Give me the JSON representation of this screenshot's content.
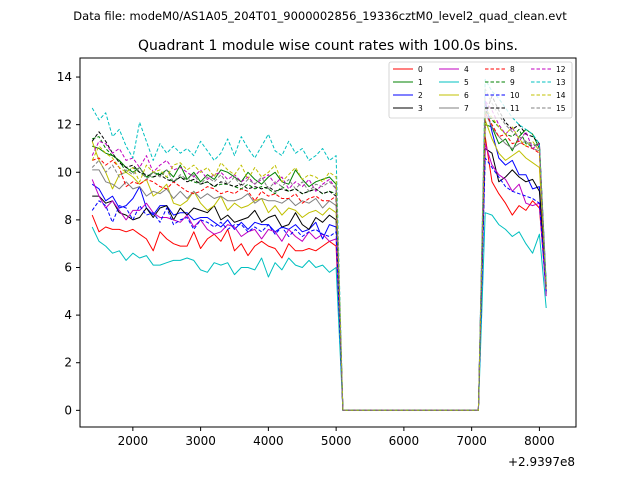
{
  "chart_data": {
    "type": "line",
    "suptitle": "Data file: modeM0/AS1A05_204T01_9000002856_19336cztM0_level2_quad_clean.evt",
    "title": "Quadrant 1 module wise count rates with 100.0s bins.",
    "xlabel": "",
    "ylabel": "",
    "x_offset_label": "+2.9397e8",
    "xlim": [
      1220,
      8540
    ],
    "ylim": [
      -0.7,
      14.8
    ],
    "xticks": [
      2000,
      3000,
      4000,
      5000,
      6000,
      7000,
      8000
    ],
    "yticks": [
      0,
      2,
      4,
      6,
      8,
      10,
      12,
      14
    ],
    "legend_position": "upper-right",
    "legend_columns": 4,
    "x": [
      1400,
      1500,
      1600,
      1700,
      1800,
      1900,
      2000,
      2100,
      2200,
      2300,
      2400,
      2500,
      2600,
      2700,
      2800,
      2900,
      3000,
      3100,
      3200,
      3300,
      3400,
      3500,
      3600,
      3700,
      3800,
      3900,
      4000,
      4100,
      4200,
      4300,
      4400,
      4500,
      4600,
      4700,
      4800,
      4900,
      5000,
      5100,
      5200,
      5300,
      5400,
      5500,
      5600,
      5700,
      5800,
      5900,
      6000,
      6100,
      6200,
      6300,
      6400,
      6500,
      6600,
      6700,
      6800,
      6900,
      7000,
      7100,
      7200,
      7300,
      7400,
      7500,
      7600,
      7700,
      7800,
      7900,
      8000,
      8100,
      8200
    ],
    "gap_start_index": 37,
    "gap_end_index": 57,
    "series": [
      {
        "name": "0",
        "color": "#ff0000",
        "style": "solid",
        "active": [
          8.2,
          7.5,
          7.7,
          7.6,
          7.6,
          7.5,
          7.6,
          7.4,
          7.2,
          6.7,
          7.5,
          7.2,
          7.0,
          6.9,
          6.9,
          7.5,
          6.8,
          7.2,
          7.4,
          7.1,
          7.6,
          6.7,
          7.0,
          6.5,
          6.9,
          7.1,
          6.9,
          6.8,
          6.4,
          7.0,
          6.7,
          6.7,
          6.8,
          6.7,
          6.9,
          7.1,
          6.9
        ],
        "post": [
          11.5,
          9.6,
          9.1,
          8.7,
          8.2,
          8.6,
          8.4,
          8.8,
          8.5,
          5.0
        ]
      },
      {
        "name": "1",
        "color": "#008000",
        "style": "solid",
        "active": [
          11.1,
          11.0,
          10.8,
          10.7,
          10.5,
          10.2,
          10.0,
          10.2,
          9.8,
          10.0,
          9.9,
          10.1,
          9.8,
          10.3,
          9.7,
          10.0,
          9.6,
          9.9,
          9.7,
          10.1,
          10.0,
          9.8,
          9.6,
          10.0,
          9.7,
          9.5,
          9.8,
          10.0,
          9.6,
          9.5,
          10.1,
          9.7,
          9.4,
          9.6,
          9.7,
          9.8,
          9.5
        ],
        "post": [
          12.0,
          11.9,
          11.2,
          11.4,
          10.9,
          11.5,
          11.8,
          11.6,
          11.0,
          4.9
        ]
      },
      {
        "name": "2",
        "color": "#0000ff",
        "style": "solid",
        "active": [
          9.5,
          9.3,
          8.8,
          9.0,
          8.5,
          8.6,
          8.9,
          9.4,
          8.5,
          8.2,
          8.6,
          8.6,
          8.2,
          8.3,
          8.3,
          8.0,
          8.1,
          8.1,
          7.9,
          7.7,
          8.0,
          7.6,
          7.9,
          7.6,
          7.9,
          7.8,
          7.8,
          7.5,
          7.7,
          7.6,
          7.8,
          7.5,
          7.6,
          7.9,
          7.2,
          7.8,
          7.7
        ],
        "post": [
          13.0,
          11.7,
          10.6,
          10.3,
          10.5,
          9.9,
          9.9,
          9.3,
          9.4,
          5.2
        ]
      },
      {
        "name": "3",
        "color": "#000000",
        "style": "solid",
        "active": [
          9.0,
          9.0,
          8.7,
          8.8,
          8.3,
          8.2,
          8.0,
          8.1,
          8.5,
          8.1,
          8.5,
          8.6,
          8.0,
          8.5,
          8.2,
          8.5,
          8.4,
          8.3,
          8.6,
          8.0,
          8.2,
          7.9,
          8.0,
          8.1,
          8.4,
          7.9,
          8.1,
          8.2,
          7.7,
          7.8,
          8.3,
          7.8,
          7.6,
          8.1,
          7.9,
          8.2,
          8.0
        ],
        "post": [
          11.0,
          10.8,
          9.6,
          9.8,
          10.1,
          9.8,
          9.6,
          9.7,
          9.2,
          5.2
        ]
      },
      {
        "name": "4",
        "color": "#c000c0",
        "style": "solid",
        "active": [
          9.7,
          9.0,
          8.5,
          8.8,
          8.4,
          8.0,
          8.4,
          8.4,
          8.7,
          8.3,
          8.1,
          8.1,
          8.0,
          7.9,
          8.2,
          7.7,
          8.0,
          7.6,
          7.4,
          7.5,
          7.8,
          7.7,
          7.3,
          7.5,
          7.6,
          7.2,
          7.6,
          7.5,
          7.1,
          7.6,
          7.3,
          7.1,
          7.5,
          7.2,
          7.4,
          7.1,
          7.2
        ],
        "post": [
          11.2,
          10.3,
          9.9,
          9.7,
          9.2,
          9.5,
          8.7,
          8.6,
          8.7,
          4.8
        ]
      },
      {
        "name": "5",
        "color": "#00c0c0",
        "style": "solid",
        "active": [
          7.7,
          7.1,
          6.9,
          6.6,
          6.7,
          6.3,
          6.6,
          6.4,
          6.5,
          6.1,
          6.1,
          6.2,
          6.3,
          6.3,
          6.4,
          6.3,
          5.9,
          5.8,
          6.2,
          6.1,
          6.2,
          5.7,
          6.0,
          6.0,
          5.9,
          6.4,
          5.6,
          6.2,
          5.9,
          6.4,
          6.1,
          6.0,
          6.3,
          6.0,
          6.1,
          5.8,
          6.0
        ],
        "post": [
          8.3,
          8.2,
          7.8,
          7.6,
          7.3,
          7.5,
          7.0,
          6.6,
          7.4,
          4.3
        ]
      },
      {
        "name": "6",
        "color": "#c0c000",
        "style": "solid",
        "active": [
          11.3,
          10.5,
          10.0,
          9.3,
          9.9,
          10.0,
          9.8,
          9.5,
          9.7,
          9.0,
          9.2,
          9.5,
          8.7,
          8.6,
          8.8,
          9.2,
          8.7,
          8.4,
          8.6,
          9.0,
          8.4,
          8.7,
          8.5,
          8.6,
          8.8,
          8.9,
          8.3,
          8.6,
          8.2,
          8.5,
          8.4,
          8.1,
          8.3,
          8.4,
          8.2,
          8.5,
          8.3
        ],
        "post": [
          12.2,
          11.4,
          10.8,
          10.5,
          10.7,
          10.9,
          10.6,
          10.4,
          10.2,
          5.3
        ]
      },
      {
        "name": "7",
        "color": "#808080",
        "style": "solid",
        "active": [
          10.1,
          10.1,
          9.6,
          9.5,
          9.3,
          9.6,
          9.3,
          9.4,
          9.0,
          9.2,
          9.1,
          9.3,
          8.9,
          9.2,
          8.9,
          9.2,
          8.9,
          9.1,
          8.9,
          9.0,
          8.8,
          8.8,
          8.9,
          9.1,
          8.7,
          8.9,
          8.8,
          8.8,
          8.7,
          8.9,
          8.6,
          8.8,
          8.7,
          8.9,
          8.5,
          8.8,
          8.6
        ],
        "post": [
          12.5,
          11.9,
          11.5,
          11.2,
          11.0,
          11.2,
          11.3,
          11.0,
          10.9,
          5.1
        ]
      },
      {
        "name": "8",
        "color": "#ff0000",
        "style": "dashed",
        "active": [
          10.5,
          10.6,
          10.3,
          10.5,
          10.2,
          9.4,
          9.6,
          9.5,
          9.7,
          9.6,
          9.4,
          9.3,
          9.6,
          9.4,
          9.2,
          9.1,
          9.2,
          9.4,
          9.3,
          9.1,
          9.2,
          9.1,
          9.3,
          9.2,
          8.8,
          9.2,
          9.0,
          9.1,
          8.9,
          8.9,
          9.1,
          8.7,
          8.9,
          9.0,
          8.8,
          8.8,
          9.0
        ],
        "post": [
          12.5,
          12.0,
          11.5,
          11.6,
          11.2,
          11.3,
          11.1,
          11.0,
          10.8,
          5.2
        ]
      },
      {
        "name": "9",
        "color": "#008000",
        "style": "dashed",
        "active": [
          11.4,
          11.5,
          11.0,
          10.7,
          10.5,
          10.0,
          10.2,
          10.0,
          9.8,
          9.8,
          10.0,
          9.8,
          9.6,
          9.8,
          9.7,
          9.6,
          9.5,
          9.6,
          9.4,
          9.5,
          9.5,
          9.4,
          9.3,
          9.5,
          9.3,
          9.4,
          9.3,
          9.1,
          9.4,
          9.2,
          9.3,
          9.1,
          9.2,
          9.3,
          9.1,
          9.2,
          9.1
        ],
        "post": [
          12.6,
          12.2,
          11.9,
          11.6,
          11.5,
          11.8,
          11.2,
          11.1,
          11.2,
          5.2
        ]
      },
      {
        "name": "10",
        "color": "#0000ff",
        "style": "dashed",
        "active": [
          8.4,
          8.8,
          8.6,
          7.9,
          8.6,
          8.5,
          8.0,
          8.6,
          8.2,
          8.3,
          7.9,
          8.5,
          7.8,
          8.0,
          8.1,
          7.6,
          8.0,
          7.9,
          7.7,
          7.9,
          7.6,
          7.8,
          7.8,
          7.5,
          7.7,
          7.5,
          7.8,
          7.4,
          7.7,
          7.3,
          7.6,
          7.3,
          7.5,
          7.6,
          7.4,
          7.3,
          7.5
        ],
        "post": [
          10.6,
          10.2,
          9.8,
          9.4,
          9.2,
          9.1,
          9.0,
          8.9,
          8.7,
          5.0
        ]
      },
      {
        "name": "11",
        "color": "#000000",
        "style": "dashed",
        "active": [
          11.3,
          11.7,
          11.3,
          10.8,
          10.4,
          10.2,
          10.3,
          10.0,
          9.9,
          9.8,
          9.9,
          9.7,
          9.6,
          9.8,
          9.6,
          9.7,
          9.5,
          9.6,
          9.4,
          9.6,
          9.5,
          9.4,
          9.5,
          9.3,
          9.4,
          9.3,
          9.4,
          9.2,
          9.3,
          9.2,
          9.3,
          9.1,
          9.2,
          9.3,
          9.1,
          9.2,
          9.0
        ],
        "post": [
          12.4,
          13.2,
          12.6,
          12.1,
          11.8,
          12.0,
          11.6,
          11.5,
          11.2,
          5.2
        ]
      },
      {
        "name": "12",
        "color": "#c000c0",
        "style": "dashed",
        "active": [
          10.7,
          11.3,
          11.2,
          10.8,
          11.0,
          10.5,
          10.6,
          10.2,
          10.7,
          10.0,
          10.3,
          10.5,
          10.1,
          10.2,
          10.0,
          9.8,
          10.1,
          9.7,
          9.9,
          10.0,
          9.7,
          9.9,
          9.6,
          9.8,
          9.5,
          9.7,
          9.9,
          9.5,
          9.8,
          9.3,
          9.6,
          9.4,
          9.7,
          9.2,
          9.5,
          9.7,
          9.3
        ],
        "post": [
          13.0,
          12.6,
          12.0,
          11.6,
          11.9,
          11.3,
          11.7,
          11.0,
          11.2,
          5.3
        ]
      },
      {
        "name": "13",
        "color": "#00c0c0",
        "style": "dashed",
        "active": [
          12.7,
          12.2,
          12.5,
          11.5,
          11.8,
          11.1,
          10.6,
          12.1,
          11.3,
          10.5,
          11.2,
          10.8,
          11.1,
          10.8,
          11.0,
          10.7,
          11.3,
          10.9,
          10.5,
          10.8,
          11.4,
          10.7,
          11.5,
          11.0,
          10.6,
          11.1,
          11.6,
          10.9,
          10.7,
          11.3,
          10.8,
          11.0,
          10.5,
          10.7,
          11.0,
          10.5,
          10.7
        ],
        "post": [
          13.9,
          13.4,
          13.1,
          12.7,
          12.3,
          12.0,
          11.8,
          11.6,
          11.2,
          5.4
        ]
      },
      {
        "name": "14",
        "color": "#c0c000",
        "style": "dashed",
        "active": [
          10.5,
          11.1,
          10.8,
          10.6,
          10.2,
          10.0,
          10.2,
          9.6,
          10.3,
          10.0,
          10.1,
          9.8,
          10.3,
          10.4,
          10.1,
          10.3,
          10.0,
          10.2,
          9.8,
          10.4,
          10.1,
          9.9,
          10.3,
          9.7,
          10.2,
          9.8,
          10.0,
          10.3,
          9.6,
          9.9,
          10.2,
          9.7,
          9.9,
          9.8,
          9.6,
          10.0,
          9.8
        ],
        "post": [
          12.7,
          12.3,
          11.9,
          11.6,
          11.9,
          11.4,
          11.1,
          11.3,
          10.9,
          5.1
        ]
      },
      {
        "name": "15",
        "color": "#808080",
        "style": "dashed",
        "active": [
          10.2,
          10.5,
          10.0,
          10.3,
          9.8,
          10.1,
          9.9,
          10.2,
          9.7,
          10.0,
          9.8,
          10.1,
          9.6,
          9.9,
          9.7,
          9.9,
          9.5,
          9.8,
          9.6,
          9.9,
          9.5,
          9.8,
          9.4,
          9.7,
          9.5,
          9.8,
          9.3,
          9.6,
          9.4,
          9.7,
          9.3,
          9.6,
          9.2,
          9.5,
          9.4,
          9.6,
          9.3
        ],
        "post": [
          13.5,
          12.9,
          12.4,
          12.0,
          11.7,
          11.5,
          11.3,
          11.2,
          11.0,
          5.2
        ]
      }
    ]
  }
}
